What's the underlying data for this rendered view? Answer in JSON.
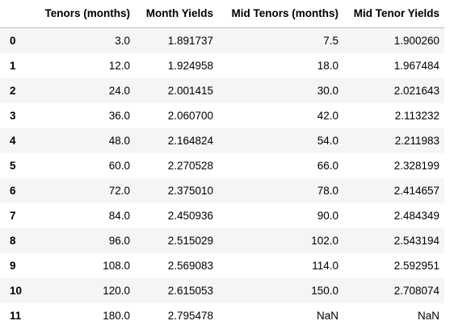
{
  "table": {
    "columns": [
      "",
      "Tenors (months)",
      "Month Yields",
      "Mid Tenors (months)",
      "Mid Tenor Yields"
    ],
    "rows": [
      {
        "index": "0",
        "tenor": "3.0",
        "yield": "1.891737",
        "mid_tenor": "7.5",
        "mid_yield": "1.900260"
      },
      {
        "index": "1",
        "tenor": "12.0",
        "yield": "1.924958",
        "mid_tenor": "18.0",
        "mid_yield": "1.967484"
      },
      {
        "index": "2",
        "tenor": "24.0",
        "yield": "2.001415",
        "mid_tenor": "30.0",
        "mid_yield": "2.021643"
      },
      {
        "index": "3",
        "tenor": "36.0",
        "yield": "2.060700",
        "mid_tenor": "42.0",
        "mid_yield": "2.113232"
      },
      {
        "index": "4",
        "tenor": "48.0",
        "yield": "2.164824",
        "mid_tenor": "54.0",
        "mid_yield": "2.211983"
      },
      {
        "index": "5",
        "tenor": "60.0",
        "yield": "2.270528",
        "mid_tenor": "66.0",
        "mid_yield": "2.328199"
      },
      {
        "index": "6",
        "tenor": "72.0",
        "yield": "2.375010",
        "mid_tenor": "78.0",
        "mid_yield": "2.414657"
      },
      {
        "index": "7",
        "tenor": "84.0",
        "yield": "2.450936",
        "mid_tenor": "90.0",
        "mid_yield": "2.484349"
      },
      {
        "index": "8",
        "tenor": "96.0",
        "yield": "2.515029",
        "mid_tenor": "102.0",
        "mid_yield": "2.543194"
      },
      {
        "index": "9",
        "tenor": "108.0",
        "yield": "2.569083",
        "mid_tenor": "114.0",
        "mid_yield": "2.592951"
      },
      {
        "index": "10",
        "tenor": "120.0",
        "yield": "2.615053",
        "mid_tenor": "150.0",
        "mid_yield": "2.708074"
      },
      {
        "index": "11",
        "tenor": "180.0",
        "yield": "2.795478",
        "mid_tenor": "NaN",
        "mid_yield": "NaN"
      }
    ]
  }
}
